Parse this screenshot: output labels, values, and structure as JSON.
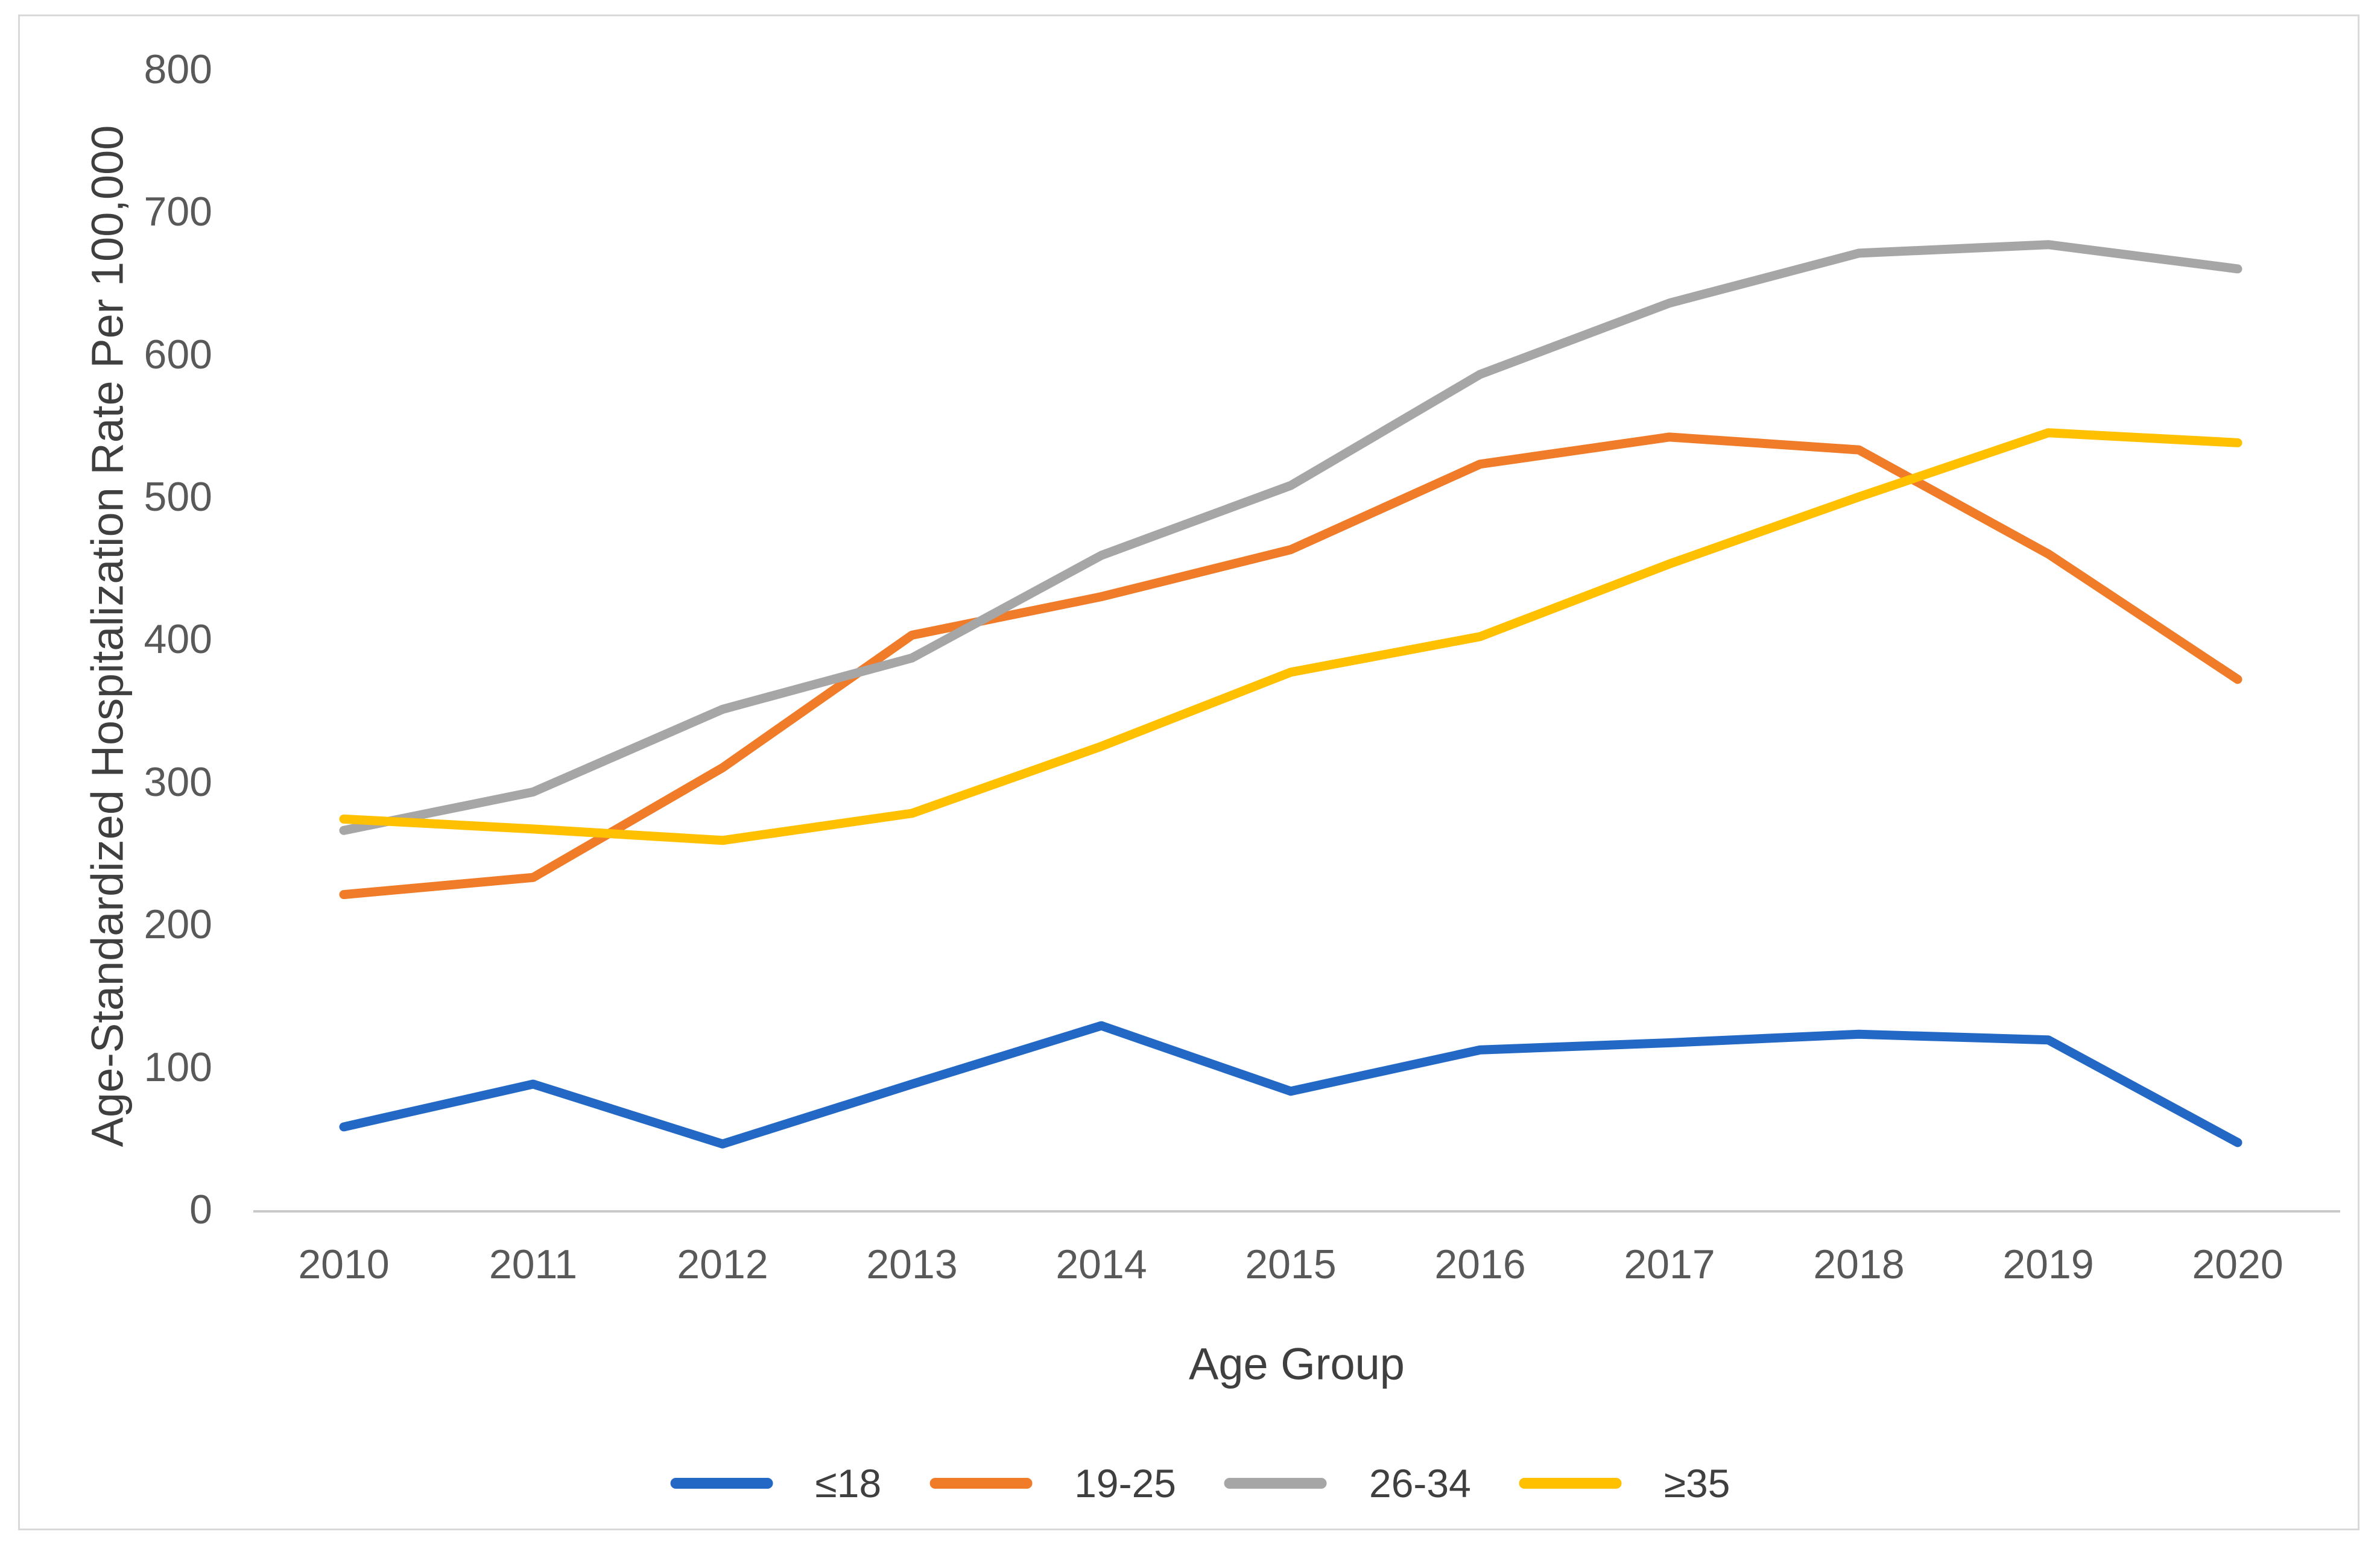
{
  "figure": {
    "background_color": "#FFFFFF",
    "border_color": "#D9D9D9",
    "axis_line_color": "#C9C9C9",
    "tick_label_color": "#595959",
    "axis_title_color": "#3F3F3F"
  },
  "chart_data": {
    "type": "line",
    "title": "",
    "xlabel": "Age Group",
    "ylabel": "Age-Standardized Hospitalization Rate Per 100,000",
    "categories": [
      "2010",
      "2011",
      "2012",
      "2013",
      "2014",
      "2015",
      "2016",
      "2017",
      "2018",
      "2019",
      "2020"
    ],
    "y_ticks": [
      "0",
      "100",
      "200",
      "300",
      "400",
      "500",
      "600",
      "700",
      "800"
    ],
    "ylim": [
      0,
      800
    ],
    "ytick_step": 100,
    "grid": false,
    "legend_position": "bottom",
    "series": [
      {
        "name": "≤18",
        "color": "#2268C4",
        "values": [
          58,
          88,
          46,
          88,
          129,
          83,
          112,
          117,
          123,
          119,
          47
        ]
      },
      {
        "name": "19-25",
        "color": "#F07B28",
        "values": [
          221,
          233,
          310,
          403,
          430,
          463,
          523,
          542,
          533,
          460,
          372
        ]
      },
      {
        "name": "26-34",
        "color": "#A6A6A6",
        "values": [
          266,
          293,
          351,
          387,
          459,
          508,
          586,
          636,
          671,
          677,
          660
        ]
      },
      {
        "name": "≥35",
        "color": "#FFC000",
        "values": [
          274,
          267,
          259,
          278,
          325,
          377,
          402,
          453,
          500,
          545,
          538
        ]
      }
    ]
  }
}
